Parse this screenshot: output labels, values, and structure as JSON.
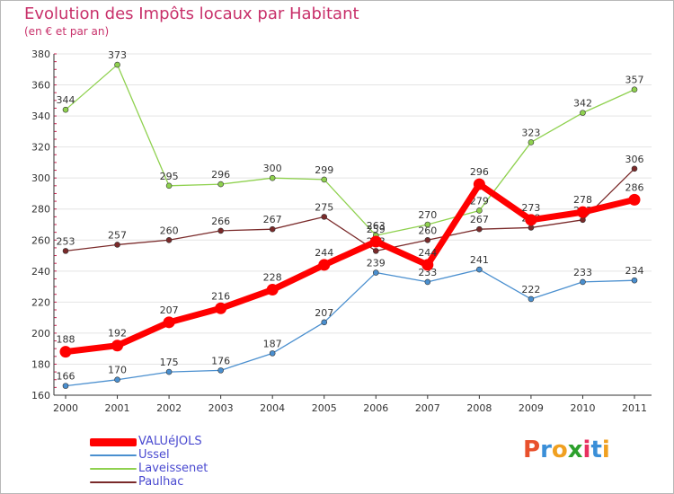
{
  "header": {
    "title": "Evolution des Impôts locaux par Habitant",
    "subtitle": "(en € et par an)"
  },
  "logo": {
    "text": "Proxiti",
    "colors": [
      "#e8502c",
      "#3a8fd8",
      "#f0a020",
      "#2ca02c",
      "#e83060",
      "#3a8fd8",
      "#f0a020"
    ]
  },
  "chart_data": {
    "type": "line",
    "title": "Evolution des Impôts locaux par Habitant",
    "subtitle": "(en € et par an)",
    "xlabel": "",
    "ylabel": "",
    "x": [
      "2000",
      "2001",
      "2002",
      "2003",
      "2004",
      "2005",
      "2006",
      "2007",
      "2008",
      "2009",
      "2010",
      "2011"
    ],
    "ylim": [
      160,
      380
    ],
    "yticks": [
      160,
      180,
      200,
      220,
      240,
      260,
      280,
      300,
      320,
      340,
      360,
      380
    ],
    "grid": "horizontal",
    "legend_position": "bottom-left",
    "series": [
      {
        "name": "Laveissenet",
        "color": "#8fd14f",
        "thickness": "thin",
        "values": [
          344,
          373,
          295,
          296,
          300,
          299,
          263,
          270,
          279,
          323,
          342,
          357
        ],
        "labels": [
          "344",
          "373",
          "295",
          "296",
          "300",
          "299",
          "263",
          "270",
          "279",
          "323",
          "342",
          "357"
        ]
      },
      {
        "name": "Paulhac",
        "color": "#7a2a2a",
        "thickness": "thin",
        "values": [
          253,
          257,
          260,
          266,
          267,
          275,
          253,
          260,
          267,
          268,
          273,
          306
        ],
        "labels": [
          "253",
          "257",
          "260",
          "266",
          "267",
          "275",
          "253",
          "260",
          "267",
          "268",
          "273",
          "306"
        ]
      },
      {
        "name": "Ussel",
        "color": "#4a8fcf",
        "thickness": "thin",
        "values": [
          166,
          170,
          175,
          176,
          187,
          207,
          239,
          233,
          241,
          222,
          233,
          234
        ],
        "labels": [
          "166",
          "170",
          "175",
          "176",
          "187",
          "207",
          "239",
          "233",
          "241",
          "222",
          "233",
          "234"
        ]
      },
      {
        "name": "VALUéJOLS",
        "color": "#ff0000",
        "thickness": "thick",
        "values": [
          188,
          192,
          207,
          216,
          228,
          244,
          259,
          244,
          296,
          273,
          278,
          286
        ],
        "labels": [
          "188",
          "192",
          "207",
          "216",
          "228",
          "244",
          "259",
          "244",
          "296",
          "273",
          "278",
          "286"
        ]
      }
    ],
    "legend": [
      "VALUéJOLS",
      "Ussel",
      "Laveissenet",
      "Paulhac"
    ]
  }
}
